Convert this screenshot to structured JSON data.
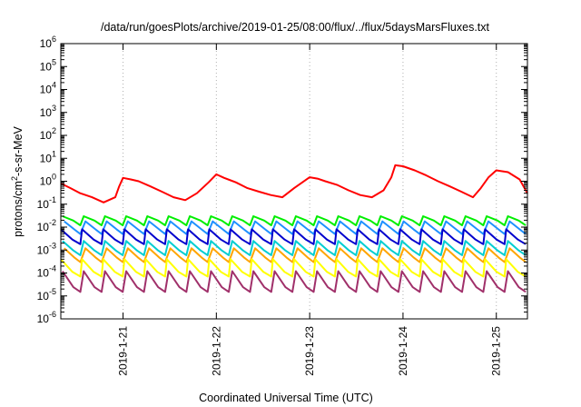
{
  "chart_data": {
    "type": "line",
    "title": "/data/run/goesPlots/archive/2019-01-25/08:00/flux/../flux/5daysMarsFluxes.txt",
    "xlabel": "Coordinated Universal Time (UTC)",
    "ylabel": {
      "prefix": "protons/cm",
      "sup": "2",
      "suffix": "-s-sr-MeV"
    },
    "y_scale": "log",
    "ylim": [
      1e-06,
      1000000.0
    ],
    "y_tick_labels": [
      {
        "base": "10",
        "exp": "-6"
      },
      {
        "base": "10",
        "exp": "-5"
      },
      {
        "base": "10",
        "exp": "-4"
      },
      {
        "base": "10",
        "exp": "-3"
      },
      {
        "base": "10",
        "exp": "-2"
      },
      {
        "base": "10",
        "exp": "-1"
      },
      {
        "base": "10",
        "exp": "0"
      },
      {
        "base": "10",
        "exp": "1"
      },
      {
        "base": "10",
        "exp": "2"
      },
      {
        "base": "10",
        "exp": "3"
      },
      {
        "base": "10",
        "exp": "4"
      },
      {
        "base": "10",
        "exp": "5"
      },
      {
        "base": "10",
        "exp": "6"
      }
    ],
    "xlim": [
      "2019-01-20 08:00",
      "2019-01-25 08:00"
    ],
    "x_ticks": [
      "2019-1-21",
      "2019-1-22",
      "2019-1-23",
      "2019-1-24",
      "2019-1-25"
    ],
    "grid": true,
    "legend": "none",
    "series": [
      {
        "color": "#ff0000",
        "x": [
          "2019-01-20 08:00",
          "2019-01-20 10:30",
          "2019-01-20 13:00",
          "2019-01-20 16:00",
          "2019-01-20 19:00",
          "2019-01-20 22:00",
          "2019-01-20 23:00",
          "2019-01-21 00:00",
          "2019-01-21 02:00",
          "2019-01-21 04:00",
          "2019-01-21 07:00",
          "2019-01-21 10:00",
          "2019-01-21 13:00",
          "2019-01-21 16:00",
          "2019-01-21 19:00",
          "2019-01-21 22:00",
          "2019-01-22 00:00",
          "2019-01-22 02:00",
          "2019-01-22 05:00",
          "2019-01-22 08:00",
          "2019-01-22 11:00",
          "2019-01-22 14:00",
          "2019-01-22 17:00",
          "2019-01-22 20:00",
          "2019-01-23 00:00",
          "2019-01-23 02:00",
          "2019-01-23 04:00",
          "2019-01-23 07:00",
          "2019-01-23 10:00",
          "2019-01-23 13:00",
          "2019-01-23 16:00",
          "2019-01-23 19:00",
          "2019-01-23 21:00",
          "2019-01-23 22:00",
          "2019-01-24 00:00",
          "2019-01-24 03:00",
          "2019-01-24 06:00",
          "2019-01-24 09:00",
          "2019-01-24 12:00",
          "2019-01-24 15:00",
          "2019-01-24 18:00",
          "2019-01-24 20:00",
          "2019-01-24 22:00",
          "2019-01-25 00:00",
          "2019-01-25 03:00",
          "2019-01-25 06:00",
          "2019-01-25 08:00"
        ],
        "y": [
          0.8,
          0.5,
          0.3,
          0.2,
          0.12,
          0.2,
          0.6,
          1.4,
          1.2,
          1.0,
          0.6,
          0.35,
          0.2,
          0.15,
          0.3,
          0.9,
          2.0,
          1.4,
          0.9,
          0.5,
          0.35,
          0.25,
          0.2,
          0.5,
          1.5,
          1.3,
          1.0,
          0.7,
          0.4,
          0.25,
          0.2,
          0.4,
          1.5,
          5.0,
          4.5,
          3.0,
          1.8,
          1.0,
          0.6,
          0.35,
          0.2,
          0.5,
          1.5,
          3.0,
          2.5,
          1.2,
          0.3
        ]
      },
      {
        "color": "#00ee00",
        "y_high": 0.03,
        "y_low": 0.012,
        "cycles": 22
      },
      {
        "color": "#1e90ff",
        "y_high": 0.018,
        "y_low": 0.005,
        "cycles": 22
      },
      {
        "color": "#0000cd",
        "y_high": 0.008,
        "y_low": 0.0018,
        "cycles": 22
      },
      {
        "color": "#00ced1",
        "y_high": 0.0025,
        "y_low": 0.0006,
        "cycles": 22
      },
      {
        "color": "#ffa500",
        "y_high": 0.0012,
        "y_low": 0.0003,
        "cycles": 22
      },
      {
        "color": "#ffff00",
        "y_high": 0.0004,
        "y_low": 7e-05,
        "cycles": 22
      },
      {
        "color": "#a0306a",
        "y_high": 0.00012,
        "y_low": 1.5e-05,
        "cycles": 22
      }
    ]
  }
}
